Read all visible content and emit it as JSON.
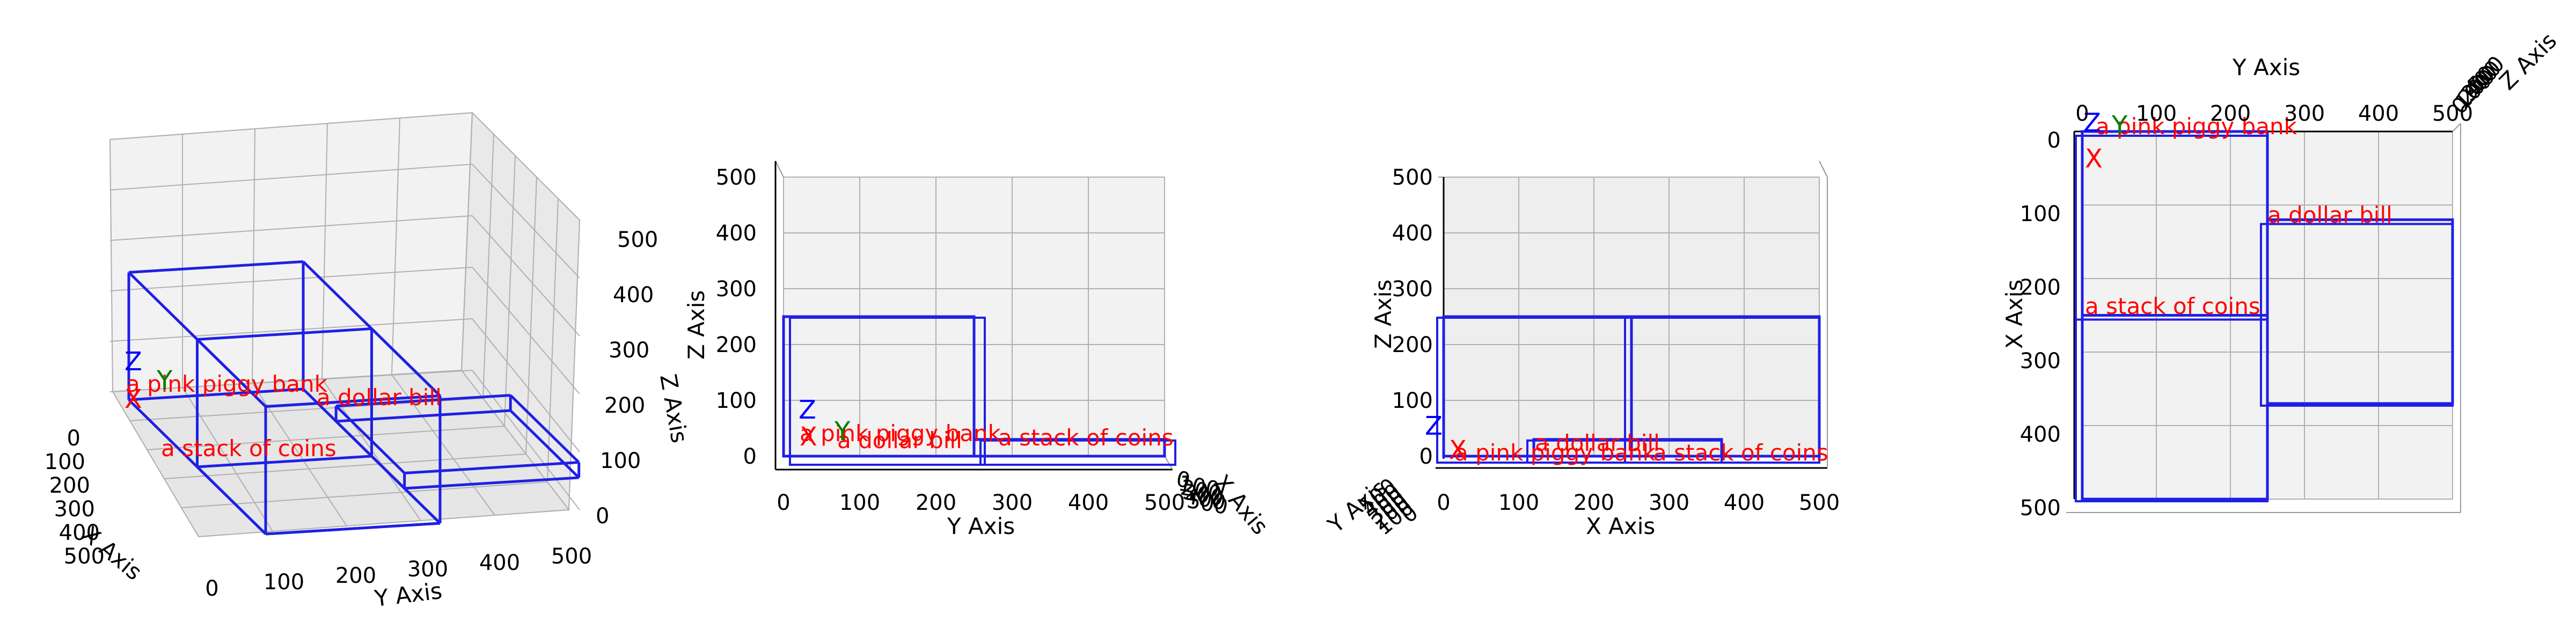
{
  "colors": {
    "box": "#1f1fe6",
    "label": "#ff0000",
    "x_axis": "#ff0000",
    "y_axis": "#008000",
    "z_axis": "#0000ff",
    "pane": "#f2f2f2",
    "grid": "#b0b0b0"
  },
  "objects": [
    {
      "name": "a pink piggy bank",
      "x": [
        0,
        500
      ],
      "y": [
        0,
        250
      ],
      "z": [
        0,
        250
      ]
    },
    {
      "name": "a dollar bill",
      "x": [
        120,
        370
      ],
      "y": [
        250,
        500
      ],
      "z": [
        0,
        30
      ]
    },
    {
      "name": "a stack of coins",
      "x": [
        250,
        500
      ],
      "y": [
        0,
        250
      ],
      "z": [
        0,
        250
      ]
    }
  ],
  "axis_letters": {
    "x": "X",
    "y": "Y",
    "z": "Z"
  },
  "views": [
    {
      "name": "perspective",
      "labels": {
        "x": "X Axis",
        "y": "Y Axis",
        "z": "Z Axis"
      },
      "x_ticks": [
        "0",
        "100",
        "200",
        "300",
        "400",
        "500"
      ],
      "y_ticks": [
        "0",
        "100",
        "200",
        "300",
        "400",
        "500"
      ],
      "z_ticks": [
        "0",
        "100",
        "200",
        "300",
        "400",
        "500"
      ]
    },
    {
      "name": "front",
      "labels": {
        "y": "Y Axis",
        "z": "Z Axis",
        "x": "X Axis"
      },
      "y_ticks": [
        "0",
        "100",
        "200",
        "300",
        "400",
        "500"
      ],
      "z_ticks": [
        "0",
        "100",
        "200",
        "300",
        "400",
        "500"
      ],
      "x_ticks": [
        "0",
        "100",
        "200",
        "300",
        "400",
        "500"
      ]
    },
    {
      "name": "side",
      "labels": {
        "x": "X Axis",
        "z": "Z Axis",
        "y": "Y Axis"
      },
      "x_ticks": [
        "0",
        "100",
        "200",
        "300",
        "400",
        "500"
      ],
      "z_ticks": [
        "0",
        "100",
        "200",
        "300",
        "400",
        "500"
      ],
      "y_ticks": [
        "0",
        "100",
        "200",
        "300",
        "400",
        "500"
      ]
    },
    {
      "name": "top",
      "labels": {
        "y": "Y Axis",
        "x": "X Axis",
        "z": "Z Axis"
      },
      "y_ticks": [
        "0",
        "100",
        "200",
        "300",
        "400",
        "500"
      ],
      "x_ticks": [
        "0",
        "100",
        "200",
        "300",
        "400",
        "500"
      ],
      "z_ticks": [
        "0",
        "100",
        "200",
        "300",
        "400",
        "500"
      ]
    }
  ]
}
